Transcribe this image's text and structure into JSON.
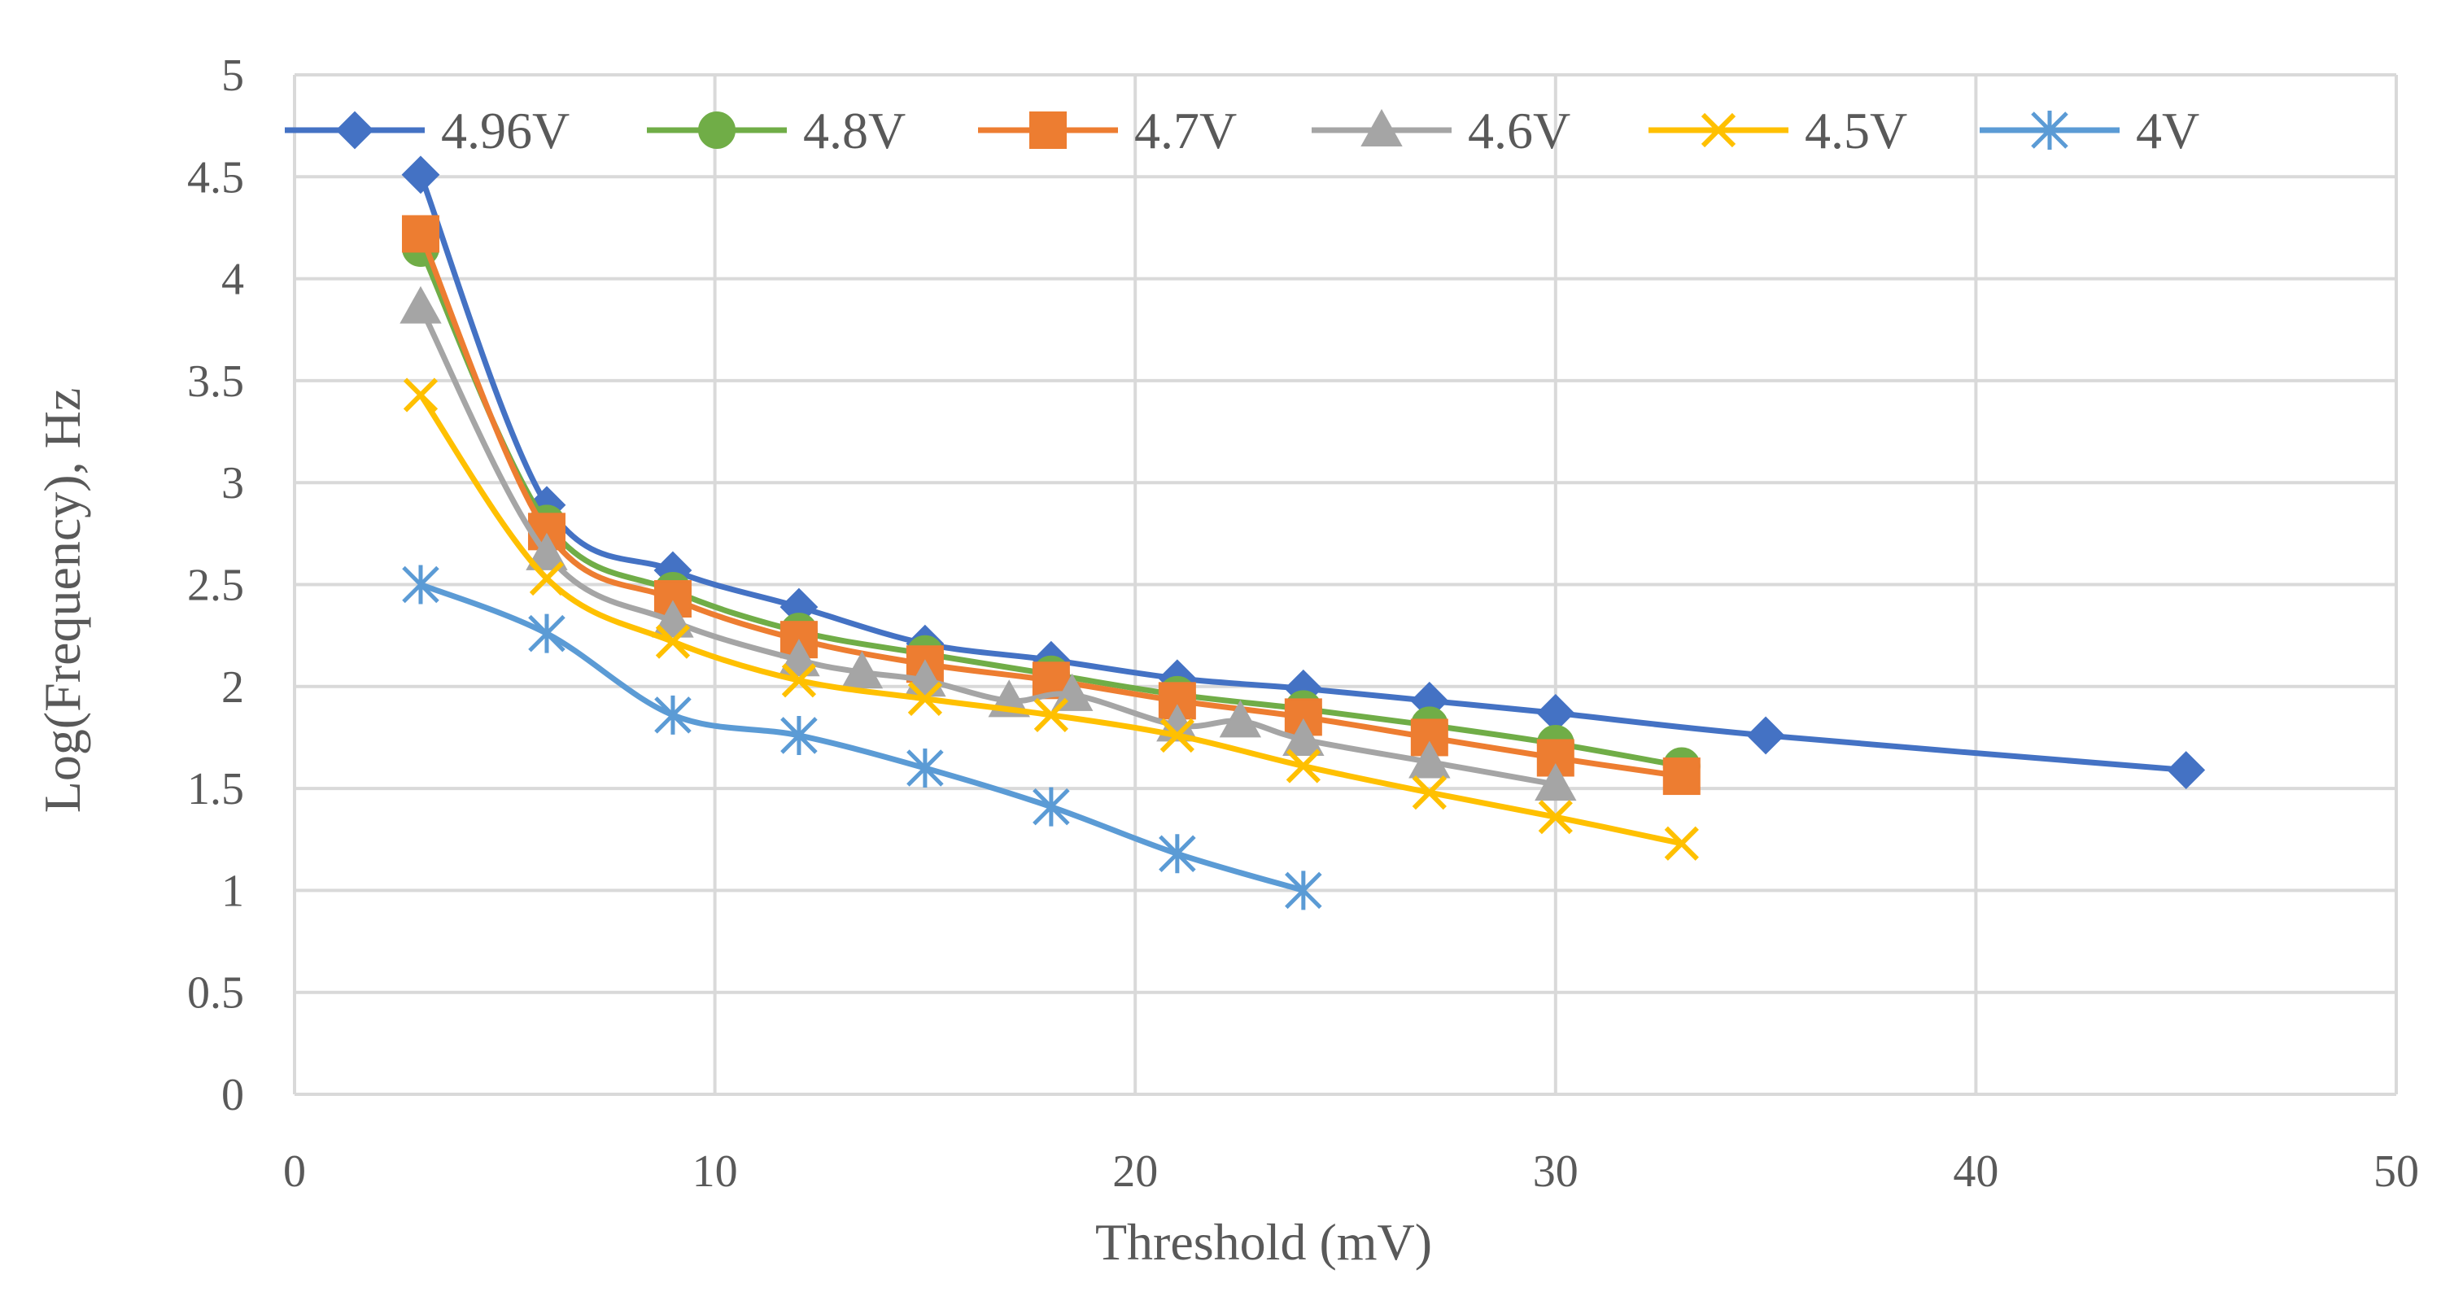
{
  "chart_data": {
    "type": "scatter",
    "title": "",
    "xlabel": "Threshold (mV)",
    "ylabel": "Log(Frequency), Hz",
    "xlim": [
      0,
      50
    ],
    "ylim": [
      0,
      5
    ],
    "xticks": [
      0,
      10,
      20,
      30,
      40,
      50
    ],
    "yticks": [
      0,
      0.5,
      1,
      1.5,
      2,
      2.5,
      3,
      3.5,
      4,
      4.5,
      5
    ],
    "ytick_labels": [
      "0",
      "0.5",
      "1",
      "1.5",
      "2",
      "2.5",
      "3",
      "3.5",
      "4",
      "4.5",
      "5"
    ],
    "grid": true,
    "smooth": true,
    "legend_position": "top",
    "series": [
      {
        "name": "4.96V",
        "color": "#4472C4",
        "marker": "diamond",
        "x": [
          3,
          6,
          9,
          12,
          15,
          18,
          21,
          24,
          27,
          30,
          35,
          45
        ],
        "y": [
          4.51,
          2.89,
          2.57,
          2.39,
          2.21,
          2.13,
          2.04,
          1.99,
          1.93,
          1.87,
          1.76,
          1.59
        ]
      },
      {
        "name": "4.8V",
        "color": "#70AD47",
        "marker": "circle",
        "x": [
          3,
          6,
          9,
          12,
          15,
          18,
          21,
          24,
          27,
          30,
          33
        ],
        "y": [
          4.15,
          2.8,
          2.47,
          2.27,
          2.16,
          2.06,
          1.96,
          1.89,
          1.81,
          1.72,
          1.61
        ]
      },
      {
        "name": "4.7V",
        "color": "#ED7D31",
        "marker": "square",
        "x": [
          3,
          6,
          9,
          12,
          15,
          18,
          21,
          24,
          27,
          30,
          33
        ],
        "y": [
          4.22,
          2.76,
          2.43,
          2.23,
          2.11,
          2.03,
          1.93,
          1.85,
          1.75,
          1.65,
          1.56
        ]
      },
      {
        "name": "4.6V",
        "color": "#A5A5A5",
        "marker": "triangle",
        "x": [
          3,
          6,
          9,
          12,
          13.5,
          15,
          17,
          18.5,
          21,
          22.5,
          24,
          27,
          30
        ],
        "y": [
          3.86,
          2.65,
          2.32,
          2.13,
          2.07,
          2.03,
          1.93,
          1.96,
          1.81,
          1.83,
          1.74,
          1.63,
          1.52
        ]
      },
      {
        "name": "4.5V",
        "color": "#FFC000",
        "marker": "x",
        "x": [
          3,
          6,
          9,
          12,
          15,
          18,
          21,
          24,
          27,
          30,
          33
        ],
        "y": [
          3.43,
          2.53,
          2.22,
          2.03,
          1.94,
          1.86,
          1.76,
          1.61,
          1.48,
          1.36,
          1.23
        ]
      },
      {
        "name": "4V",
        "color": "#5B9BD5",
        "marker": "star",
        "x": [
          3,
          6,
          9,
          12,
          15,
          18,
          21,
          24
        ],
        "y": [
          2.5,
          2.26,
          1.86,
          1.76,
          1.6,
          1.41,
          1.18,
          1.0
        ]
      }
    ]
  }
}
